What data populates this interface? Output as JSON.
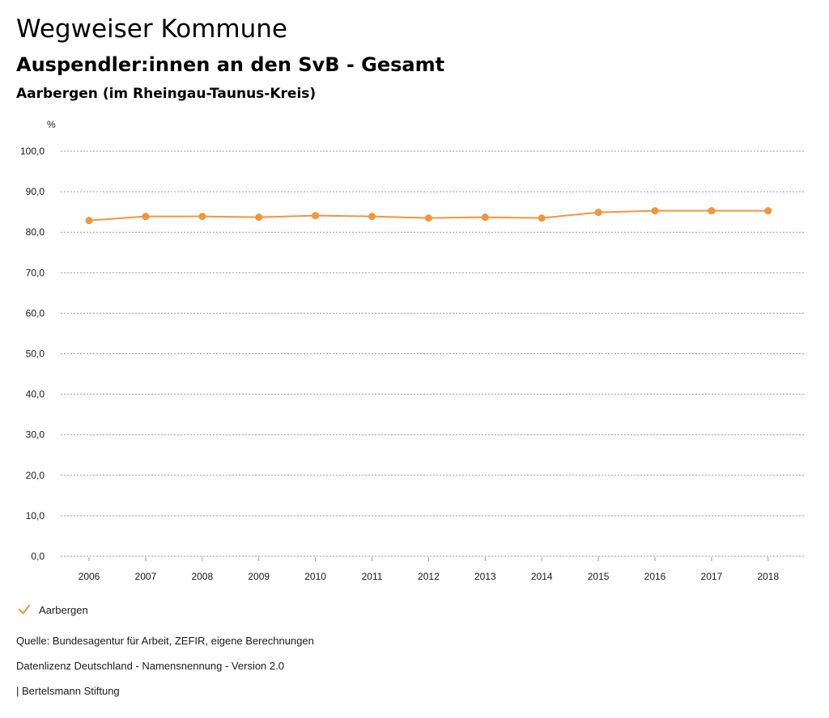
{
  "header": {
    "title": "Wegweiser Kommune",
    "subtitle": "Auspendler:innen an den SvB - Gesamt",
    "region": "Aarbergen (im Rheingau-Taunus-Kreis)"
  },
  "colors": {
    "series": "#f0963c",
    "grid": "#9a9a9a",
    "text": "#1a1a1a"
  },
  "chart_data": {
    "type": "line",
    "title": "Auspendler:innen an den SvB - Gesamt",
    "xlabel": "",
    "ylabel": "%",
    "ylim": [
      0,
      100
    ],
    "y_ticks": [
      "0,0",
      "10,0",
      "20,0",
      "30,0",
      "40,0",
      "50,0",
      "60,0",
      "70,0",
      "80,0",
      "90,0",
      "100,0"
    ],
    "categories": [
      "2006",
      "2007",
      "2008",
      "2009",
      "2010",
      "2011",
      "2012",
      "2013",
      "2014",
      "2015",
      "2016",
      "2017",
      "2018"
    ],
    "series": [
      {
        "name": "Aarbergen",
        "values": [
          82.9,
          83.9,
          83.9,
          83.7,
          84.1,
          83.9,
          83.5,
          83.7,
          83.5,
          84.9,
          85.3,
          85.3,
          85.3
        ]
      }
    ],
    "grid": true,
    "legend": "bottom-left"
  },
  "legend": {
    "label": "Aarbergen"
  },
  "footer": {
    "source": "Quelle: Bundesagentur für Arbeit, ZEFIR, eigene Berechnungen",
    "license": "Datenlizenz Deutschland - Namensnennung - Version 2.0",
    "publisher": "| Bertelsmann Stiftung"
  }
}
